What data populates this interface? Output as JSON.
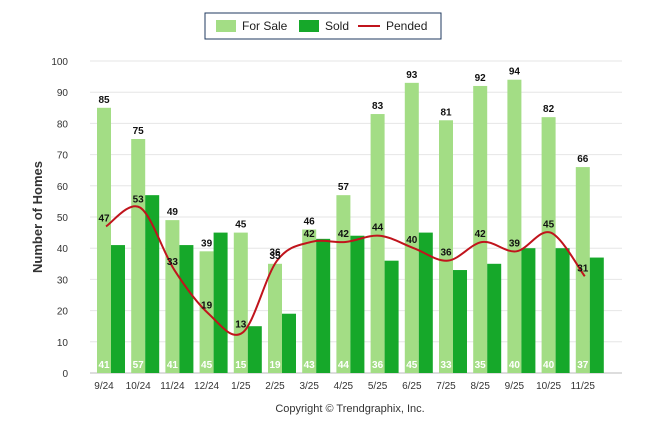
{
  "chart_data": {
    "type": "bar",
    "title": "",
    "xlabel": "",
    "ylabel": "Number of Homes",
    "ylim": [
      0,
      100
    ],
    "yticks": [
      0,
      10,
      20,
      30,
      40,
      50,
      60,
      70,
      80,
      90,
      100
    ],
    "grid": true,
    "legend_position": "top-center",
    "categories": [
      "9/24",
      "10/24",
      "11/24",
      "12/24",
      "1/25",
      "2/25",
      "3/25",
      "4/25",
      "5/25",
      "6/25",
      "7/25",
      "8/25",
      "9/25",
      "10/25",
      "11/25"
    ],
    "series": [
      {
        "name": "For Sale",
        "type": "bar",
        "color": "#a3dd85",
        "values": [
          85,
          75,
          49,
          39,
          45,
          35,
          46,
          57,
          83,
          93,
          81,
          92,
          94,
          82,
          66
        ]
      },
      {
        "name": "Sold",
        "type": "bar",
        "color": "#16a82a",
        "values": [
          41,
          57,
          41,
          45,
          15,
          19,
          43,
          44,
          36,
          45,
          33,
          35,
          40,
          40,
          37
        ]
      },
      {
        "name": "Pended",
        "type": "line",
        "color": "#c0141c",
        "values": [
          47,
          53,
          33,
          19,
          13,
          36,
          42,
          42,
          44,
          40,
          36,
          42,
          39,
          45,
          31
        ]
      }
    ]
  },
  "footer": {
    "copyright": "Copyright © Trendgraphix, Inc."
  }
}
